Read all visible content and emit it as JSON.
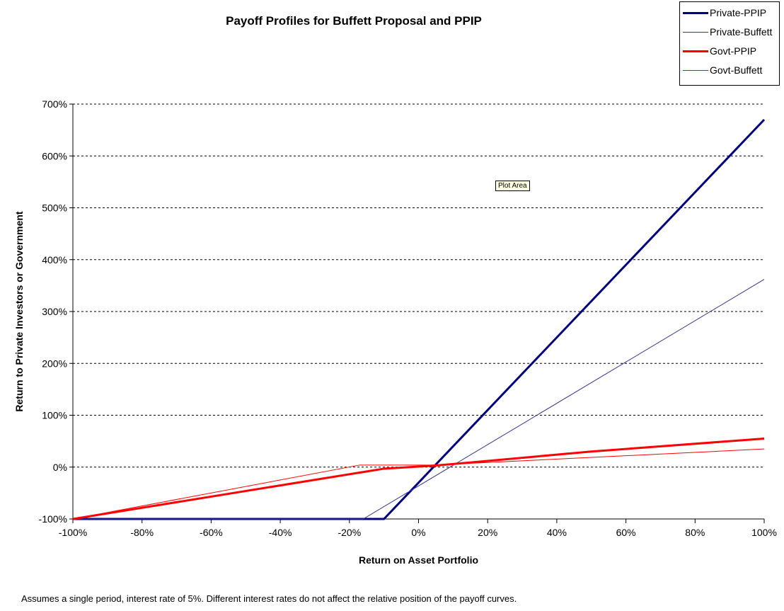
{
  "chart_data": {
    "type": "line",
    "title": "Payoff Profiles for Buffett Proposal and PPIP",
    "xlabel": "Return on Asset Portfolio",
    "ylabel": "Return to Private Investors or Government",
    "xlim": [
      -100,
      100
    ],
    "ylim": [
      -100,
      700
    ],
    "x_ticks": [
      "-100%",
      "-80%",
      "-60%",
      "-40%",
      "-20%",
      "0%",
      "20%",
      "40%",
      "60%",
      "80%",
      "100%"
    ],
    "y_ticks": [
      "-100%",
      "0%",
      "100%",
      "200%",
      "300%",
      "400%",
      "500%",
      "600%",
      "700%"
    ],
    "grid": "horizontal dashed",
    "legend_position": "top-right",
    "series": [
      {
        "name": "Private-PPIP",
        "color": "#000080",
        "width": 3,
        "points": [
          [
            -100,
            -100
          ],
          [
            -10,
            -100
          ],
          [
            100,
            670
          ]
        ]
      },
      {
        "name": "Private-Buffett",
        "color": "#333399",
        "width": 1,
        "points": [
          [
            -100,
            -100
          ],
          [
            -16,
            -100
          ],
          [
            100,
            362
          ]
        ]
      },
      {
        "name": "Govt-PPIP",
        "color": "#ff0000",
        "width": 3,
        "points": [
          [
            -100,
            -100
          ],
          [
            -10,
            -3
          ],
          [
            5,
            3
          ],
          [
            50,
            30
          ],
          [
            100,
            55
          ]
        ]
      },
      {
        "name": "Govt-Buffett",
        "color": "#ff0000",
        "width": 1,
        "points": [
          [
            -100,
            -100
          ],
          [
            -17,
            4
          ],
          [
            5,
            4
          ],
          [
            100,
            35
          ]
        ]
      }
    ],
    "annotations": [
      "Plot Area"
    ]
  },
  "footnote": "Assumes a single period, interest rate of 5%. Different interest rates do not affect the relative position of the payoff curves."
}
